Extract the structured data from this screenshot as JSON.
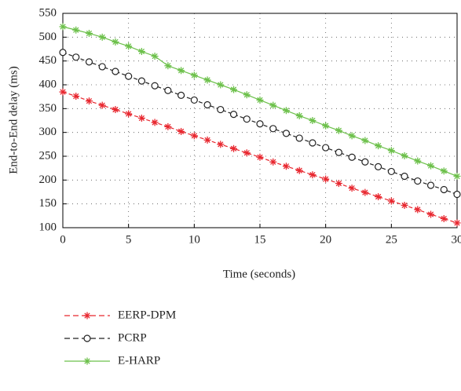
{
  "chart_data": {
    "type": "line",
    "xlabel": "Time (seconds)",
    "ylabel": "End-to-End delay (ms)",
    "x": [
      0,
      1,
      2,
      3,
      4,
      5,
      6,
      7,
      8,
      9,
      10,
      11,
      12,
      13,
      14,
      15,
      16,
      17,
      18,
      19,
      20,
      21,
      22,
      23,
      24,
      25,
      26,
      27,
      28,
      29,
      30
    ],
    "series": [
      {
        "name": "EERP-DPM",
        "color": "#e8272f",
        "marker": "asterisk",
        "dashed": true,
        "values": [
          385,
          376,
          366,
          357,
          348,
          339,
          330,
          321,
          312,
          302,
          293,
          284,
          275,
          266,
          257,
          248,
          238,
          229,
          220,
          211,
          202,
          193,
          183,
          174,
          165,
          156,
          147,
          138,
          128,
          119,
          110
        ]
      },
      {
        "name": "PCRP",
        "color": "#222222",
        "marker": "circle",
        "dashed": true,
        "values": [
          468,
          458,
          448,
          438,
          428,
          418,
          408,
          398,
          388,
          378,
          368,
          358,
          348,
          338,
          328,
          318,
          308,
          298,
          288,
          278,
          268,
          258,
          248,
          238,
          228,
          218,
          208,
          198,
          189,
          180,
          170
        ]
      },
      {
        "name": "E-HARP",
        "color": "#6cc04a",
        "marker": "asterisk",
        "dashed": false,
        "values": [
          522,
          515,
          508,
          500,
          490,
          481,
          470,
          460,
          440,
          430,
          420,
          410,
          400,
          390,
          379,
          368,
          357,
          346,
          335,
          325,
          314,
          304,
          293,
          283,
          272,
          262,
          251,
          240,
          230,
          219,
          208
        ]
      }
    ],
    "xlim": [
      0,
      30
    ],
    "xticks": [
      0,
      5,
      10,
      15,
      20,
      25,
      30
    ],
    "ylim": [
      100,
      550
    ],
    "yticks": [
      100,
      150,
      200,
      250,
      300,
      350,
      400,
      450,
      500,
      550
    ],
    "grid": true
  }
}
